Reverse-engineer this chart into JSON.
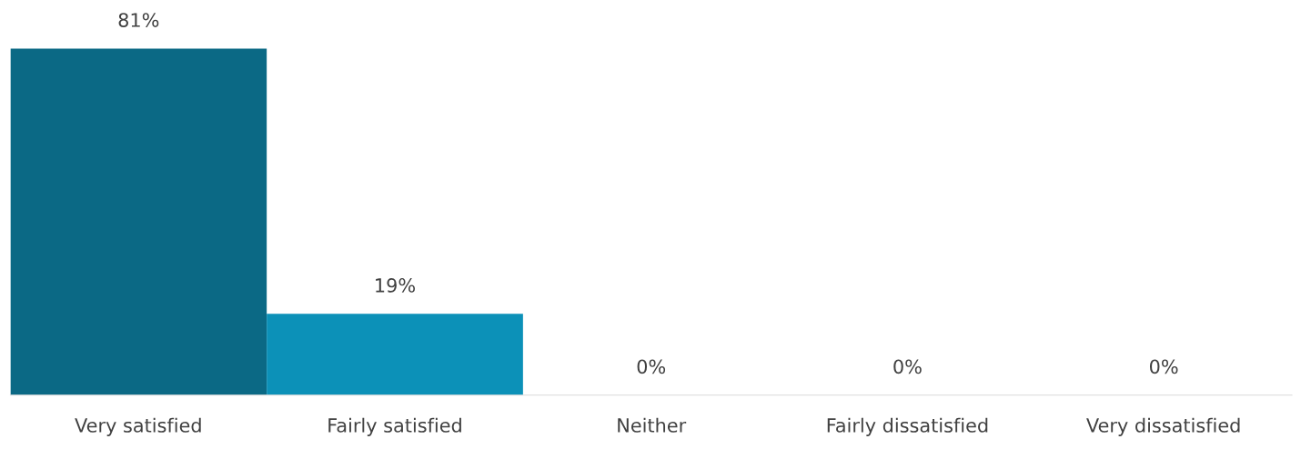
{
  "chart_data": {
    "type": "bar",
    "categories": [
      "Very satisfied",
      "Fairly satisfied",
      "Neither",
      "Fairly dissatisfied",
      "Very dissatisfied"
    ],
    "values": [
      81,
      19,
      0,
      0,
      0
    ],
    "value_labels": [
      "81%",
      "19%",
      "0%",
      "0%",
      "0%"
    ],
    "colors": [
      "#0b6985",
      "#0c91b8",
      "#0c91b8",
      "#0c91b8",
      "#0c91b8"
    ],
    "grid": false,
    "legend": false
  }
}
